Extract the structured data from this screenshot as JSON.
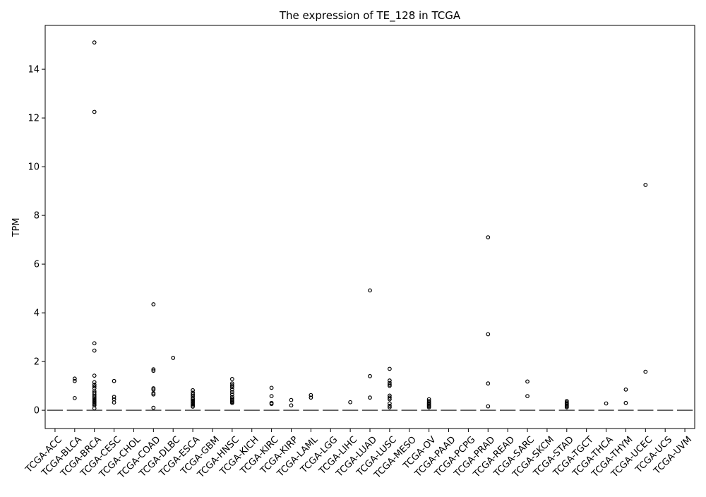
{
  "chart_data": {
    "type": "box",
    "title": "The expression of TE_128 in TCGA",
    "xlabel": "",
    "ylabel": "TPM",
    "ylim": [
      -0.75,
      15.8
    ],
    "yticks": [
      0,
      2,
      4,
      6,
      8,
      10,
      12,
      14
    ],
    "grid": false,
    "categories": [
      "TCGA-ACC",
      "TCGA-BLCA",
      "TCGA-BRCA",
      "TCGA-CESC",
      "TCGA-CHOL",
      "TCGA-COAD",
      "TCGA-DLBC",
      "TCGA-ESCA",
      "TCGA-GBM",
      "TCGA-HNSC",
      "TCGA-KICH",
      "TCGA-KIRC",
      "TCGA-KIRP",
      "TCGA-LAML",
      "TCGA-LGG",
      "TCGA-LIHC",
      "TCGA-LUAD",
      "TCGA-LUSC",
      "TCGA-MESO",
      "TCGA-OV",
      "TCGA-PAAD",
      "TCGA-PCPG",
      "TCGA-PRAD",
      "TCGA-READ",
      "TCGA-SARC",
      "TCGA-SKCM",
      "TCGA-STAD",
      "TCGA-TGCT",
      "TCGA-THCA",
      "TCGA-THYM",
      "TCGA-UCEC",
      "TCGA-UCS",
      "TCGA-UVM"
    ],
    "median": [
      0,
      0,
      0,
      0,
      0,
      0,
      0,
      0,
      0,
      0,
      0,
      0,
      0,
      0,
      0,
      0,
      0,
      0,
      0,
      0,
      0,
      0,
      0,
      0,
      0,
      0,
      0,
      0,
      0,
      0,
      0,
      0,
      0
    ],
    "outliers": [
      [],
      [
        1.3,
        1.2,
        0.5
      ],
      [
        15.1,
        12.25,
        2.75,
        2.45,
        1.42,
        1.15,
        1.05,
        0.98,
        0.9,
        0.78,
        0.72,
        0.65,
        0.58,
        0.52,
        0.47,
        0.42,
        0.38,
        0.34,
        0.3,
        0.25,
        0.2,
        0.08
      ],
      [
        1.2,
        0.55,
        0.45,
        0.32
      ],
      [],
      [
        4.35,
        1.68,
        1.62,
        0.9,
        0.85,
        0.7,
        0.65,
        0.1
      ],
      [
        2.15
      ],
      [
        0.82,
        0.72,
        0.65,
        0.58,
        0.5,
        0.45,
        0.4,
        0.35,
        0.3,
        0.25,
        0.2,
        0.15
      ],
      [],
      [
        1.28,
        1.1,
        1.02,
        0.95,
        0.85,
        0.75,
        0.65,
        0.55,
        0.48,
        0.42,
        0.38,
        0.34,
        0.3
      ],
      [],
      [
        0.92,
        0.58,
        0.3,
        0.26
      ],
      [
        0.42,
        0.2
      ],
      [
        0.62,
        0.52
      ],
      [],
      [
        0.33
      ],
      [
        4.92,
        1.4,
        0.52
      ],
      [
        1.7,
        1.22,
        1.12,
        1.05,
        1.0,
        0.6,
        0.52,
        0.45,
        0.28,
        0.18,
        0.12
      ],
      [],
      [
        0.45,
        0.38,
        0.32,
        0.28,
        0.24,
        0.2,
        0.16,
        0.12
      ],
      [],
      [],
      [
        7.1,
        3.12,
        1.1,
        0.16
      ],
      [],
      [
        1.18,
        0.58
      ],
      [],
      [
        0.38,
        0.32,
        0.28,
        0.24,
        0.2,
        0.16,
        0.12
      ],
      [],
      [
        0.28
      ],
      [
        0.85,
        0.3
      ],
      [
        9.25,
        1.58
      ],
      [],
      []
    ]
  }
}
